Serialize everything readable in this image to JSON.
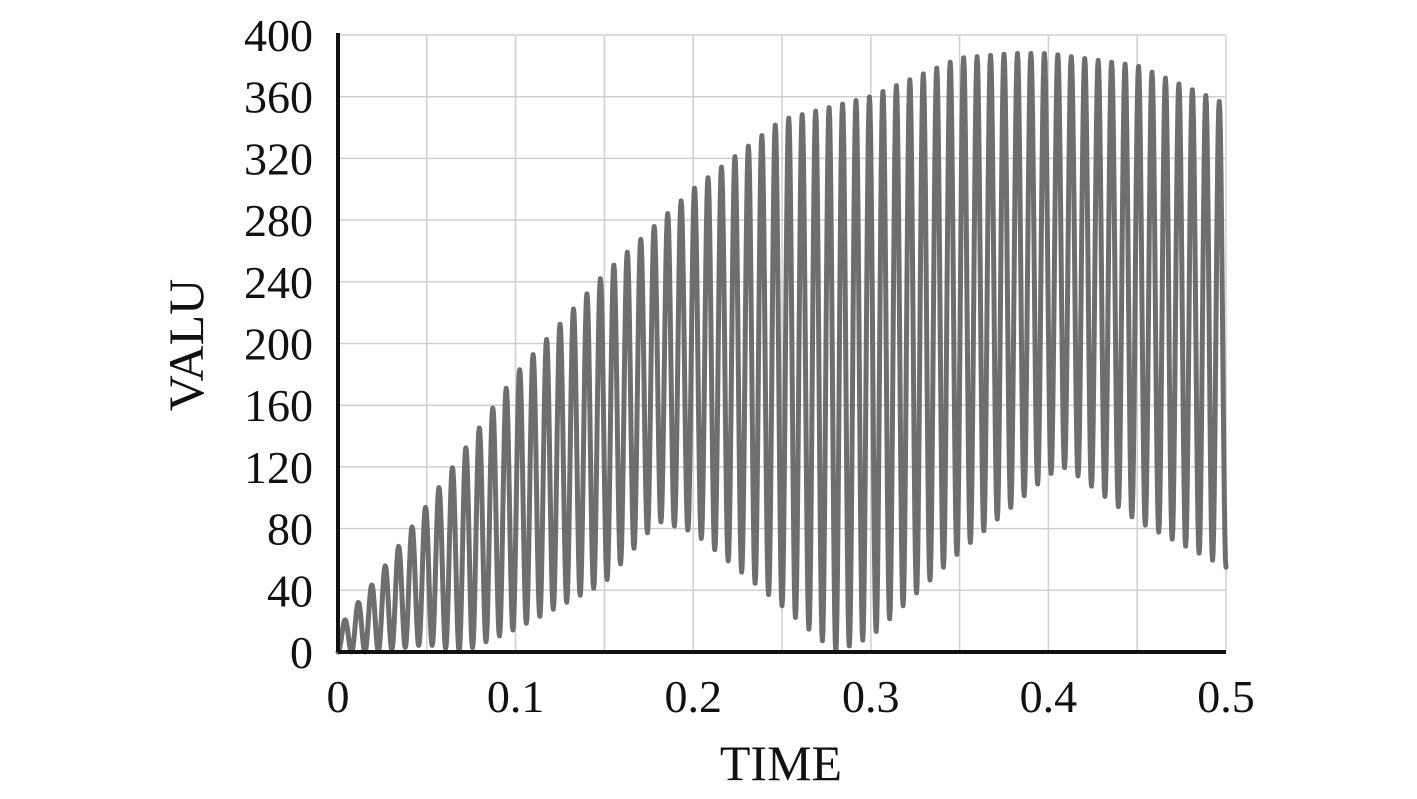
{
  "chart_data": {
    "type": "line",
    "xlabel": "TIME",
    "ylabel": "VALU",
    "xlim": [
      0,
      0.5
    ],
    "ylim": [
      0,
      400
    ],
    "x_ticks": [
      "0",
      "0.1",
      "0.2",
      "0.3",
      "0.4",
      "0.5"
    ],
    "y_ticks": [
      "0",
      "40",
      "80",
      "120",
      "160",
      "200",
      "240",
      "280",
      "320",
      "360",
      "400"
    ],
    "grid": true,
    "series": [
      {
        "color": "#666666",
        "description_of_shape": "oscillating",
        "upper_envelope": {
          "x": [
            0.0,
            0.02,
            0.05,
            0.1,
            0.15,
            0.2,
            0.25,
            0.3,
            0.35,
            0.38,
            0.4,
            0.45,
            0.5
          ],
          "y": [
            15,
            45,
            95,
            180,
            245,
            300,
            345,
            360,
            385,
            388,
            388,
            380,
            355
          ]
        },
        "lower_envelope": {
          "x": [
            0.0,
            0.02,
            0.05,
            0.07,
            0.1,
            0.15,
            0.18,
            0.2,
            0.25,
            0.28,
            0.3,
            0.35,
            0.4,
            0.41,
            0.45,
            0.5
          ],
          "y": [
            0,
            0,
            5,
            0,
            15,
            45,
            85,
            78,
            30,
            0,
            10,
            65,
            115,
            120,
            85,
            55
          ]
        },
        "cycles": 66
      }
    ]
  },
  "colors": {
    "trace": "#666666",
    "axis": "#111111",
    "grid": "#d0d0d0"
  }
}
